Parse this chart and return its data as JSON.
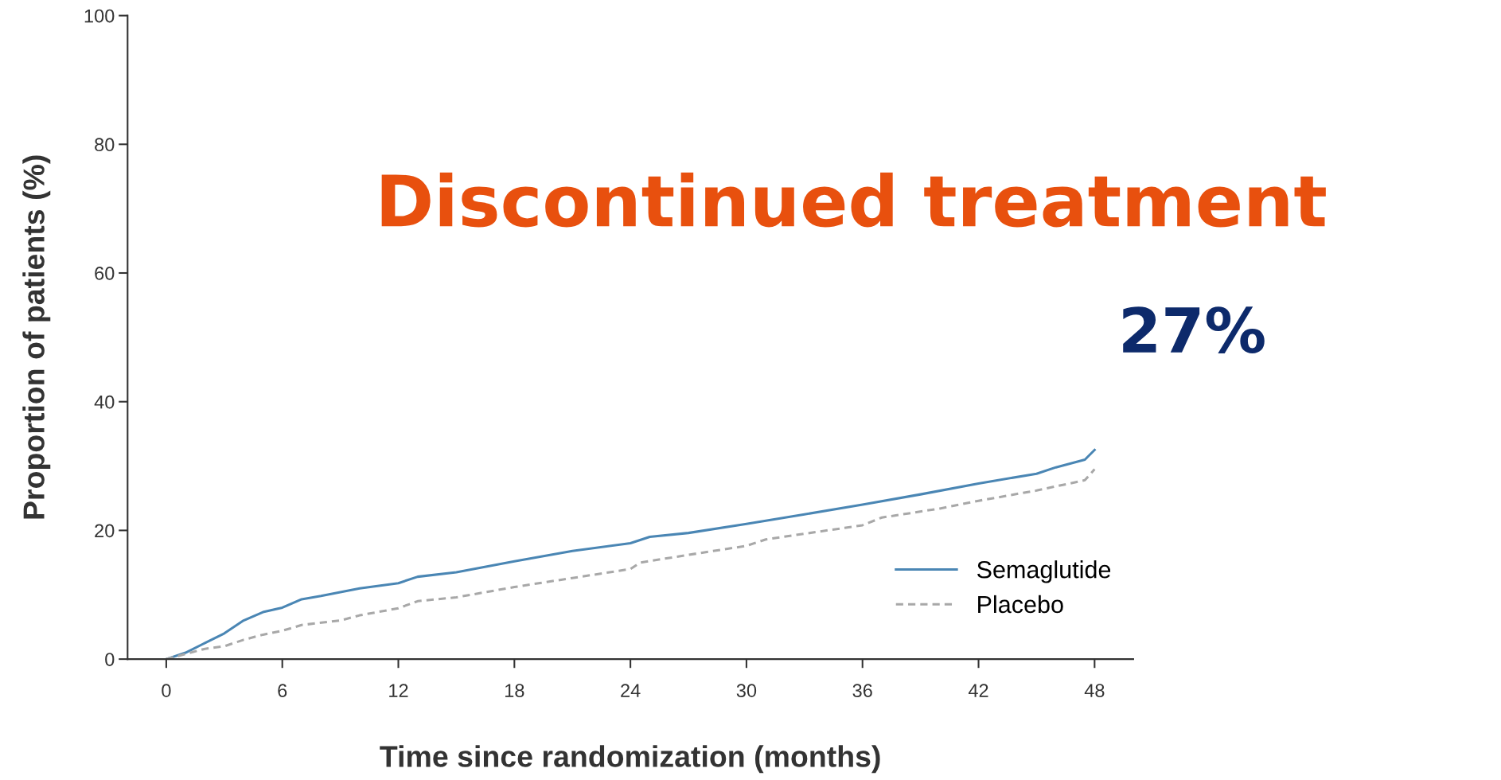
{
  "chart_data": {
    "type": "line",
    "xlabel": "Time since randomization (months)",
    "ylabel": "Proportion of patients (%)",
    "xlim": [
      -2,
      50
    ],
    "xticks": [
      0,
      6,
      12,
      18,
      24,
      30,
      36,
      42,
      48
    ],
    "ylim": [
      0,
      100
    ],
    "yticks": [
      0,
      20,
      40,
      60,
      80,
      100
    ],
    "grid": false,
    "legend": "bottom right",
    "annotations": [
      "Discontinued treatment",
      "27%"
    ],
    "series": [
      {
        "name": "Semaglutide",
        "color": "#4a86b4",
        "line_style": "solid",
        "x": [
          0,
          1,
          2,
          3,
          4,
          5,
          6,
          7,
          8,
          9,
          10,
          12,
          13,
          15,
          18,
          21,
          24,
          25,
          27,
          30,
          33,
          36,
          39,
          42,
          45,
          46,
          47.5,
          48
        ],
        "values": [
          0,
          1,
          2.5,
          4,
          6,
          7.3,
          8,
          9.3,
          9.8,
          10.4,
          11,
          11.8,
          12.8,
          13.5,
          15.2,
          16.8,
          18,
          19,
          19.6,
          21,
          22.5,
          24,
          25.6,
          27.3,
          28.8,
          29.8,
          31,
          32.5
        ]
      },
      {
        "name": "Placebo",
        "color": "#a8a8a8",
        "line_style": "dashed",
        "x": [
          0,
          1,
          2,
          3,
          4,
          5,
          6,
          7,
          9,
          10,
          12,
          13,
          15,
          18,
          21,
          24,
          24.5,
          27,
          30,
          31,
          36,
          37,
          40,
          42,
          45,
          47.5,
          48
        ],
        "values": [
          0,
          0.8,
          1.6,
          2,
          3,
          3.8,
          4.4,
          5.3,
          6,
          6.8,
          7.9,
          9,
          9.6,
          11.2,
          12.6,
          14,
          15,
          16.2,
          17.6,
          18.6,
          20.8,
          22,
          23.4,
          24.6,
          26.2,
          27.8,
          29.5
        ]
      }
    ]
  }
}
